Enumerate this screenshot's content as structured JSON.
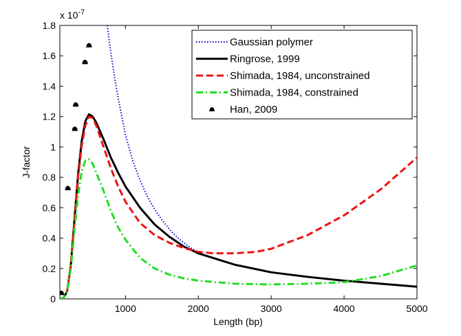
{
  "chart_data": {
    "type": "line",
    "title": "",
    "xlabel": "Length (bp)",
    "ylabel": "J-factor",
    "y_exponent_base": "x 10",
    "y_exponent_power": "-7",
    "xlim": [
      100,
      5000
    ],
    "ylim": [
      0,
      1.8
    ],
    "x_ticks": [
      1000,
      2000,
      3000,
      4000,
      5000
    ],
    "x_tick_labels": [
      "1000",
      "2000",
      "3000",
      "4000",
      "5000"
    ],
    "y_ticks": [
      0,
      0.2,
      0.4,
      0.6,
      0.8,
      1.0,
      1.2,
      1.4,
      1.6,
      1.8
    ],
    "y_tick_labels": [
      "0",
      "0.2",
      "0.4",
      "0.6",
      "0.8",
      "1",
      "1.2",
      "1.4",
      "1.6",
      "1.8"
    ],
    "grid": false,
    "legend_position": "top-right",
    "series": [
      {
        "name": "Gaussian polymer",
        "style": "dotted",
        "color": "#0000cc",
        "x": [
          750,
          800,
          850,
          900,
          1000,
          1100,
          1200,
          1300,
          1400,
          1500,
          1600,
          1700,
          1800,
          1900,
          2000
        ],
        "y": [
          1.8,
          1.62,
          1.46,
          1.32,
          1.08,
          0.91,
          0.78,
          0.675,
          0.59,
          0.52,
          0.46,
          0.41,
          0.37,
          0.335,
          0.305
        ]
      },
      {
        "name": "Ringrose, 1999",
        "style": "solid",
        "color": "#000000",
        "x": [
          100,
          150,
          200,
          250,
          300,
          350,
          400,
          450,
          500,
          550,
          600,
          700,
          800,
          900,
          1000,
          1200,
          1400,
          1600,
          1800,
          2000,
          2500,
          3000,
          3500,
          4000,
          4500,
          5000
        ],
        "y": [
          0,
          0.005,
          0.05,
          0.22,
          0.52,
          0.82,
          1.04,
          1.17,
          1.215,
          1.2,
          1.16,
          1.05,
          0.93,
          0.83,
          0.74,
          0.6,
          0.49,
          0.41,
          0.345,
          0.3,
          0.225,
          0.175,
          0.145,
          0.12,
          0.1,
          0.08
        ]
      },
      {
        "name": "Shimada, 1984, unconstrained",
        "style": "dashed",
        "color": "#ee1111",
        "x": [
          100,
          150,
          200,
          250,
          300,
          350,
          400,
          450,
          500,
          550,
          600,
          700,
          800,
          900,
          1000,
          1200,
          1400,
          1600,
          1800,
          2000,
          2200,
          2500,
          2800,
          3000,
          3500,
          4000,
          4500,
          5000
        ],
        "y": [
          0,
          0.005,
          0.05,
          0.22,
          0.51,
          0.8,
          1.01,
          1.14,
          1.2,
          1.19,
          1.14,
          1.0,
          0.86,
          0.74,
          0.64,
          0.5,
          0.42,
          0.37,
          0.335,
          0.31,
          0.3,
          0.3,
          0.31,
          0.33,
          0.42,
          0.55,
          0.72,
          0.93
        ]
      },
      {
        "name": "Shimada, 1984, constrained",
        "style": "dashdot",
        "color": "#22dd22",
        "x": [
          100,
          150,
          200,
          250,
          300,
          350,
          400,
          450,
          500,
          550,
          600,
          700,
          800,
          900,
          1000,
          1200,
          1400,
          1600,
          1800,
          2000,
          2500,
          3000,
          3500,
          4000,
          4500,
          5000
        ],
        "y": [
          0,
          0.005,
          0.05,
          0.2,
          0.45,
          0.68,
          0.84,
          0.91,
          0.92,
          0.89,
          0.83,
          0.71,
          0.58,
          0.47,
          0.39,
          0.27,
          0.2,
          0.16,
          0.135,
          0.12,
          0.1,
          0.095,
          0.1,
          0.11,
          0.15,
          0.22
        ]
      },
      {
        "name": "Han, 2009",
        "style": "markers",
        "color": "#000000",
        "x": [
          120,
          210,
          305,
          318,
          445,
          500
        ],
        "y": [
          0.04,
          0.73,
          1.12,
          1.28,
          1.56,
          1.67
        ]
      }
    ]
  }
}
